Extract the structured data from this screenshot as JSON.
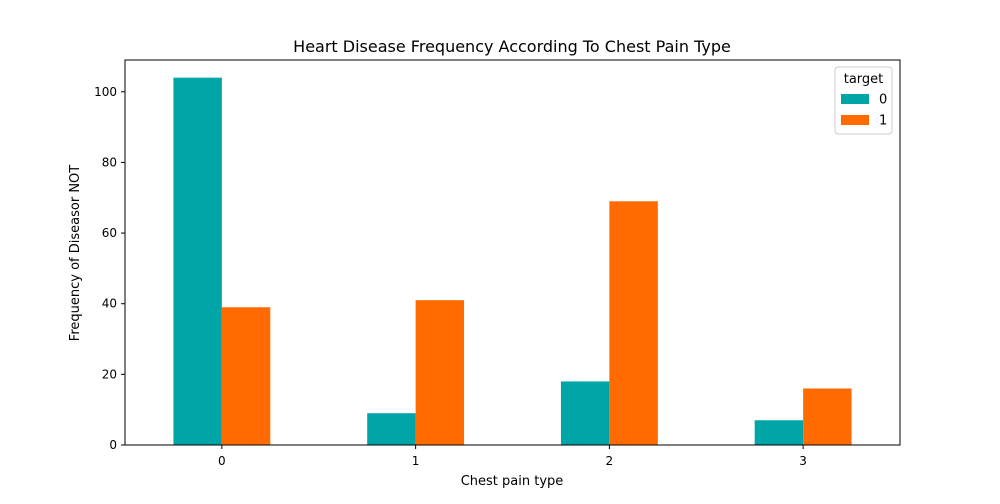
{
  "chart_data": {
    "type": "bar",
    "title": "Heart Disease Frequency According To Chest Pain Type",
    "xlabel": "Chest pain type",
    "ylabel": "Frequency of Diseasor NOT",
    "categories": [
      "0",
      "1",
      "2",
      "3"
    ],
    "series": [
      {
        "name": "0",
        "values": [
          104,
          9,
          18,
          7
        ],
        "color": "#00A5A8"
      },
      {
        "name": "1",
        "values": [
          39,
          41,
          69,
          16
        ],
        "color": "#FF6B00"
      }
    ],
    "ylim": [
      0,
      109
    ],
    "yticks": [
      0,
      20,
      40,
      60,
      80,
      100
    ],
    "legend": {
      "title": "target",
      "placement": "top-right"
    },
    "grid": false
  }
}
